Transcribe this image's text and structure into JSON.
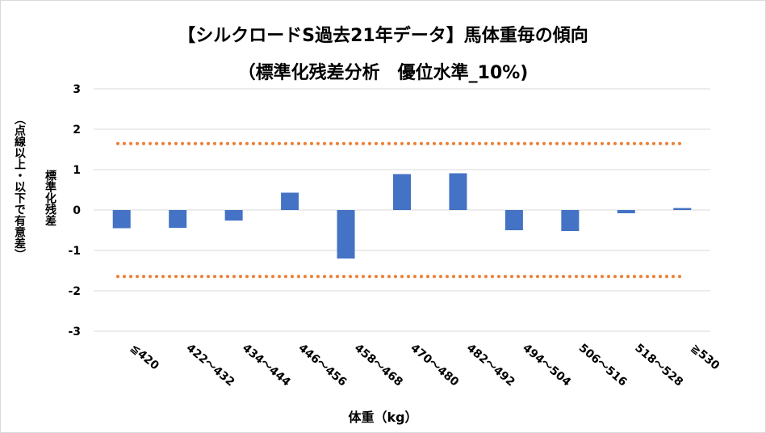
{
  "chart_data": {
    "type": "bar",
    "title": "【シルクロードS過去21年データ】馬体重毎の傾向",
    "subtitle": "（標準化残差分析　優位水準_10%)",
    "xlabel": "体重（kg）",
    "ylabel": "標準化残差",
    "ylabel_note": "（点線以上・以下で有意差）",
    "categories": [
      "≦420",
      "422～432",
      "434～444",
      "446～456",
      "458～468",
      "470～480",
      "482～492",
      "494～504",
      "506～516",
      "518～528",
      "≧530"
    ],
    "values": [
      -0.45,
      -0.44,
      -0.26,
      0.43,
      -1.2,
      0.89,
      0.91,
      -0.5,
      -0.52,
      -0.08,
      0.05
    ],
    "ylim": [
      -3,
      3
    ],
    "yticks": [
      "-3",
      "-2",
      "-1",
      "0",
      "1",
      "2",
      "3"
    ],
    "thresholds": [
      1.645,
      -1.645
    ],
    "grid": true,
    "colors": {
      "bar": "#4472c4",
      "threshold": "#ed7d31",
      "grid": "#d9d9d9"
    }
  }
}
